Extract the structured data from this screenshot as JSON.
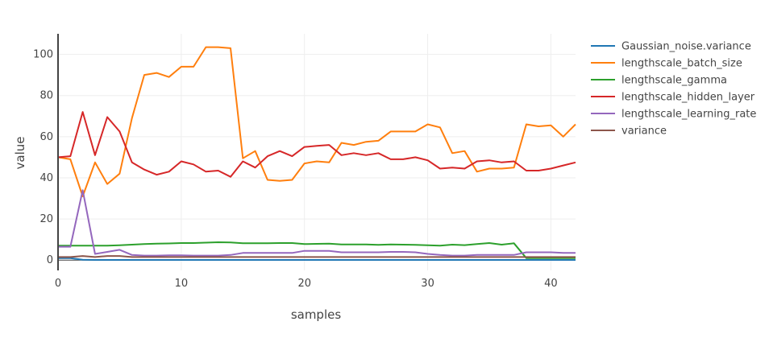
{
  "chart_data": {
    "type": "line",
    "xlabel": "samples",
    "ylabel": "value",
    "xlim": [
      0,
      42
    ],
    "ylim": [
      -5,
      110
    ],
    "x_ticks": [
      0,
      10,
      20,
      30,
      40
    ],
    "y_ticks": [
      0,
      20,
      40,
      60,
      80,
      100
    ],
    "grid": true,
    "legend_position": "right",
    "x": [
      0,
      1,
      2,
      3,
      4,
      5,
      6,
      7,
      8,
      9,
      10,
      11,
      12,
      13,
      14,
      15,
      16,
      17,
      18,
      19,
      20,
      21,
      22,
      23,
      24,
      25,
      26,
      27,
      28,
      29,
      30,
      31,
      32,
      33,
      34,
      35,
      36,
      37,
      38,
      39,
      40,
      41,
      42
    ],
    "series": [
      {
        "name": "Gaussian_noise.variance",
        "color": "#1f77b4",
        "values": [
          1.0,
          1.0,
          0.2,
          0.1,
          0.1,
          0.1,
          0.1,
          0.1,
          0.1,
          0.1,
          0.1,
          0.1,
          0.1,
          0.1,
          0.1,
          0.1,
          0.1,
          0.1,
          0.1,
          0.1,
          0.1,
          0.1,
          0.1,
          0.1,
          0.1,
          0.1,
          0.1,
          0.1,
          0.1,
          0.1,
          0.1,
          0.1,
          0.1,
          0.1,
          0.1,
          0.1,
          0.1,
          0.1,
          0.1,
          0.1,
          0.1,
          0.1,
          0.1
        ]
      },
      {
        "name": "lengthscale_batch_size",
        "color": "#ff7f0e",
        "values": [
          50,
          49,
          31,
          47.5,
          37,
          42,
          69,
          90,
          91,
          89,
          94,
          94,
          103.5,
          103.5,
          103,
          49.5,
          53,
          39,
          38.5,
          39,
          47,
          48,
          47.5,
          57,
          56,
          57.5,
          58,
          62.5,
          62.5,
          62.5,
          66,
          64.5,
          52,
          53,
          43,
          44.5,
          44.5,
          45,
          66,
          65,
          65.5,
          60,
          66
        ]
      },
      {
        "name": "lengthscale_gamma",
        "color": "#2ca02c",
        "values": [
          7,
          7,
          7,
          7,
          7,
          7.2,
          7.5,
          7.8,
          8,
          8.1,
          8.3,
          8.3,
          8.5,
          8.7,
          8.6,
          8.2,
          8.2,
          8.2,
          8.3,
          8.3,
          7.8,
          7.9,
          8,
          7.6,
          7.6,
          7.6,
          7.4,
          7.6,
          7.5,
          7.4,
          7.2,
          7,
          7.5,
          7.3,
          7.8,
          8.3,
          7.5,
          8.2,
          1,
          1,
          1,
          1,
          1
        ]
      },
      {
        "name": "lengthscale_hidden_layer",
        "color": "#d62728",
        "values": [
          50,
          50.5,
          72,
          51,
          69.5,
          62.5,
          47.5,
          44,
          41.5,
          43,
          48,
          46.5,
          43,
          43.5,
          40.5,
          48,
          45,
          50.5,
          53,
          50.5,
          55,
          55.5,
          56,
          51,
          52,
          51,
          52,
          49,
          49,
          50,
          48.5,
          44.5,
          45,
          44.5,
          48,
          48.5,
          47.5,
          48,
          43.5,
          43.5,
          44.5,
          46,
          47.5
        ]
      },
      {
        "name": "lengthscale_learning_rate",
        "color": "#9467bd",
        "values": [
          6.5,
          6.5,
          34,
          3,
          4,
          5,
          2.5,
          2.2,
          2.2,
          2.3,
          2.3,
          2.2,
          2.2,
          2.2,
          2.5,
          3.5,
          3.5,
          3.5,
          3.5,
          3.5,
          4.5,
          4.5,
          4.5,
          3.8,
          3.8,
          3.8,
          3.8,
          4,
          4,
          3.8,
          3,
          2.5,
          2.2,
          2.2,
          2.5,
          2.5,
          2.5,
          2.5,
          3.8,
          3.8,
          3.8,
          3.5,
          3.5
        ]
      },
      {
        "name": "variance",
        "color": "#8c564b",
        "values": [
          1.5,
          1.5,
          2,
          1.5,
          2,
          2,
          1.5,
          1.5,
          1.5,
          1.5,
          1.5,
          1.5,
          1.5,
          1.5,
          1.5,
          1.5,
          1.5,
          1.5,
          1.5,
          1.5,
          1.5,
          1.5,
          1.5,
          1.5,
          1.5,
          1.5,
          1.5,
          1.5,
          1.5,
          1.5,
          1.5,
          1.5,
          1.5,
          1.5,
          1.5,
          1.5,
          1.5,
          1.5,
          1.5,
          1.5,
          1.5,
          1.5,
          1.5
        ]
      }
    ]
  }
}
